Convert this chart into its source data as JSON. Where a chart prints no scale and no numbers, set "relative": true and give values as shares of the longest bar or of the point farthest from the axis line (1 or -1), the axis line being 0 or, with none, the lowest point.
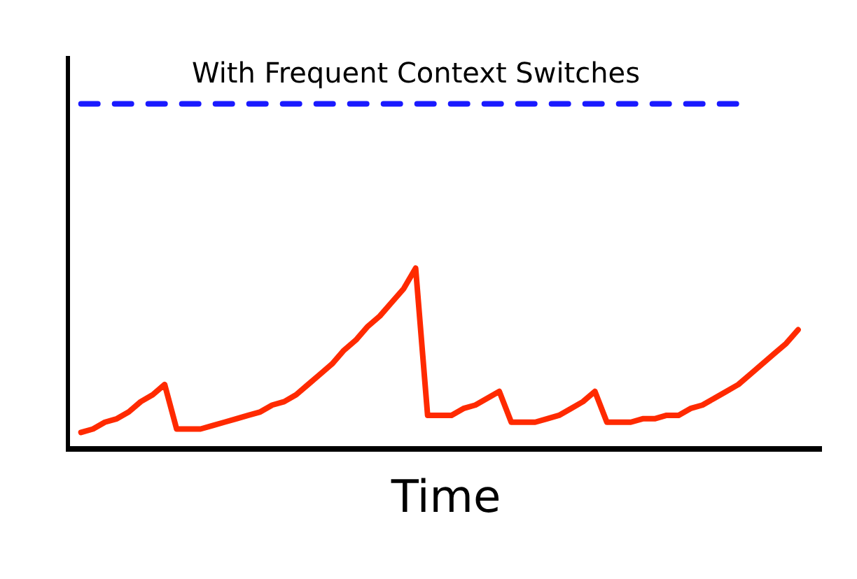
{
  "chart_data": {
    "type": "line",
    "relative": true,
    "xlabel": "Time",
    "categories": [
      null,
      null,
      null,
      null,
      null,
      null,
      null,
      null,
      null,
      null,
      null,
      null,
      null,
      null,
      null,
      null,
      null,
      null,
      null,
      null,
      null,
      null,
      null,
      null,
      null,
      null,
      null,
      null,
      null,
      null,
      null,
      null,
      null,
      null,
      null,
      null,
      null,
      null,
      null,
      null,
      null,
      null,
      null,
      null,
      null,
      null,
      null,
      null,
      null,
      null,
      null,
      null,
      null,
      null,
      null,
      null,
      null,
      null,
      null,
      null,
      null
    ],
    "series": [
      {
        "color": "#ff2a00",
        "line_style": "solid",
        "values": [
          0.04,
          0.05,
          0.07,
          0.08,
          0.1,
          0.13,
          0.15,
          0.18,
          0.05,
          0.05,
          0.05,
          0.06,
          0.07,
          0.08,
          0.09,
          0.1,
          0.12,
          0.13,
          0.15,
          0.18,
          0.21,
          0.24,
          0.28,
          0.31,
          0.35,
          0.38,
          0.42,
          0.46,
          0.52,
          0.09,
          0.09,
          0.09,
          0.11,
          0.12,
          0.14,
          0.16,
          0.07,
          0.07,
          0.07,
          0.08,
          0.09,
          0.11,
          0.13,
          0.16,
          0.07,
          0.07,
          0.07,
          0.08,
          0.08,
          0.09,
          0.09,
          0.11,
          0.12,
          0.14,
          0.16,
          0.18,
          0.21,
          0.24,
          0.27,
          0.3,
          0.34
        ]
      },
      {
        "name": "With Frequent Context Switches",
        "color": "#1a1aff",
        "line_style": "dashed",
        "values": [
          1,
          1,
          1,
          1,
          1,
          1,
          1,
          1,
          1,
          1,
          1,
          1,
          1,
          1,
          1,
          1,
          1,
          1,
          1,
          1,
          1,
          1,
          1,
          1,
          1,
          1,
          1,
          1,
          1,
          1,
          1,
          1,
          1,
          1,
          1,
          1,
          1,
          1,
          1,
          1,
          1,
          1,
          1,
          1,
          1,
          1,
          1,
          1,
          1,
          1,
          1,
          1,
          1,
          1,
          1,
          1,
          1,
          null,
          null,
          null,
          null
        ]
      }
    ]
  }
}
